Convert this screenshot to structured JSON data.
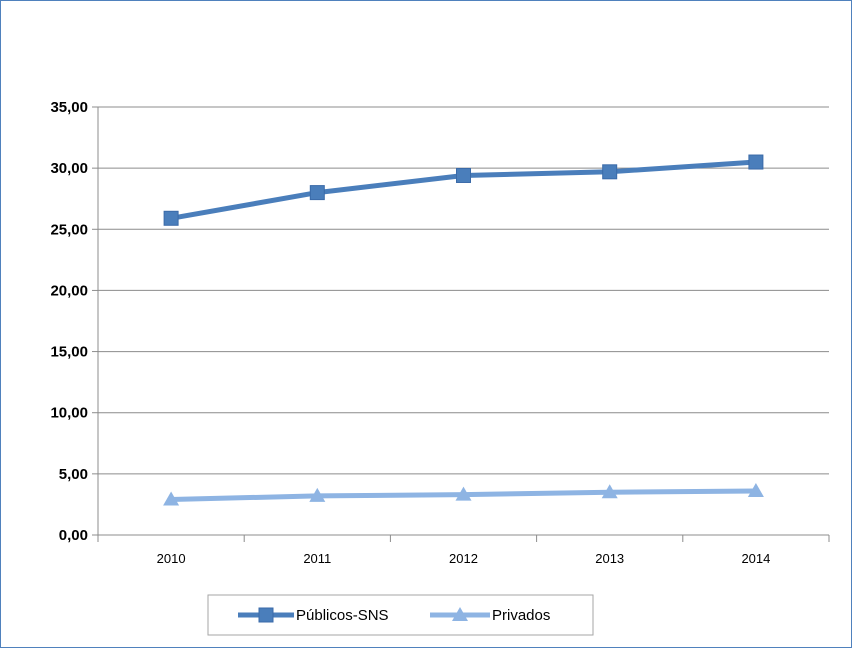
{
  "chart_data": {
    "type": "line",
    "title": "",
    "xlabel": "",
    "ylabel": "",
    "categories": [
      "2010",
      "2011",
      "2012",
      "2013",
      "2014"
    ],
    "ylim": [
      0,
      35
    ],
    "ytick_labels": [
      "0,00",
      "5,00",
      "10,00",
      "15,00",
      "20,00",
      "25,00",
      "30,00",
      "35,00"
    ],
    "grid": true,
    "legend_position": "bottom",
    "series": [
      {
        "name": "Públicos-SNS",
        "values": [
          25.9,
          28.0,
          29.4,
          29.7,
          30.5
        ],
        "color": "#4a7ebb",
        "marker": "square"
      },
      {
        "name": "Privados",
        "values": [
          2.9,
          3.2,
          3.3,
          3.5,
          3.6
        ],
        "color": "#8eb4e3",
        "marker": "triangle"
      }
    ]
  }
}
